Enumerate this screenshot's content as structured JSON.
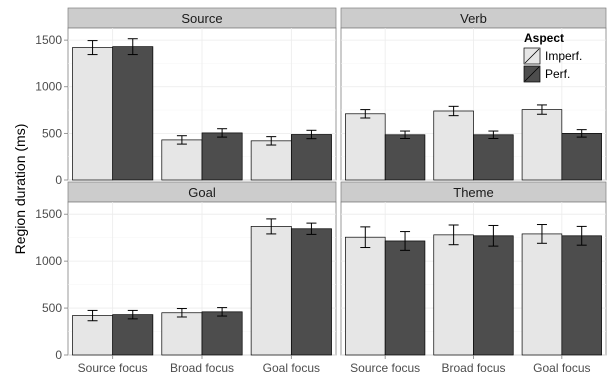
{
  "chart_data": {
    "type": "bar",
    "ylabel": "Region duration (ms)",
    "categories": [
      "Source focus",
      "Broad focus",
      "Goal focus"
    ],
    "yticks": [
      0,
      500,
      1000,
      1500
    ],
    "ylim": [
      0,
      1630
    ],
    "grid": true,
    "facet_layout": "2x2",
    "legend": {
      "title": "Aspect",
      "position": "top-right",
      "entries": [
        "Imperf.",
        "Perf."
      ]
    },
    "colors": {
      "Imperf.": "#e6e6e6",
      "Perf.": "#4d4d4d"
    },
    "panels": [
      {
        "title": "Source",
        "series": [
          {
            "name": "Imperf.",
            "values": [
              1420,
              430,
              420
            ],
            "err": [
              75,
              45,
              45
            ]
          },
          {
            "name": "Perf.",
            "values": [
              1430,
              505,
              488
            ],
            "err": [
              85,
              45,
              45
            ]
          }
        ]
      },
      {
        "title": "Verb",
        "series": [
          {
            "name": "Imperf.",
            "values": [
              710,
              740,
              755
            ],
            "err": [
              45,
              50,
              50
            ]
          },
          {
            "name": "Perf.",
            "values": [
              485,
              485,
              500
            ],
            "err": [
              40,
              40,
              40
            ]
          }
        ]
      },
      {
        "title": "Goal",
        "series": [
          {
            "name": "Imperf.",
            "values": [
              420,
              450,
              1370
            ],
            "err": [
              55,
              45,
              80
            ]
          },
          {
            "name": "Perf.",
            "values": [
              430,
              460,
              1345
            ],
            "err": [
              45,
              45,
              60
            ]
          }
        ]
      },
      {
        "title": "Theme",
        "series": [
          {
            "name": "Imperf.",
            "values": [
              1255,
              1280,
              1290
            ],
            "err": [
              110,
              105,
              100
            ]
          },
          {
            "name": "Perf.",
            "values": [
              1215,
              1270,
              1270
            ],
            "err": [
              100,
              110,
              100
            ]
          }
        ]
      }
    ]
  }
}
